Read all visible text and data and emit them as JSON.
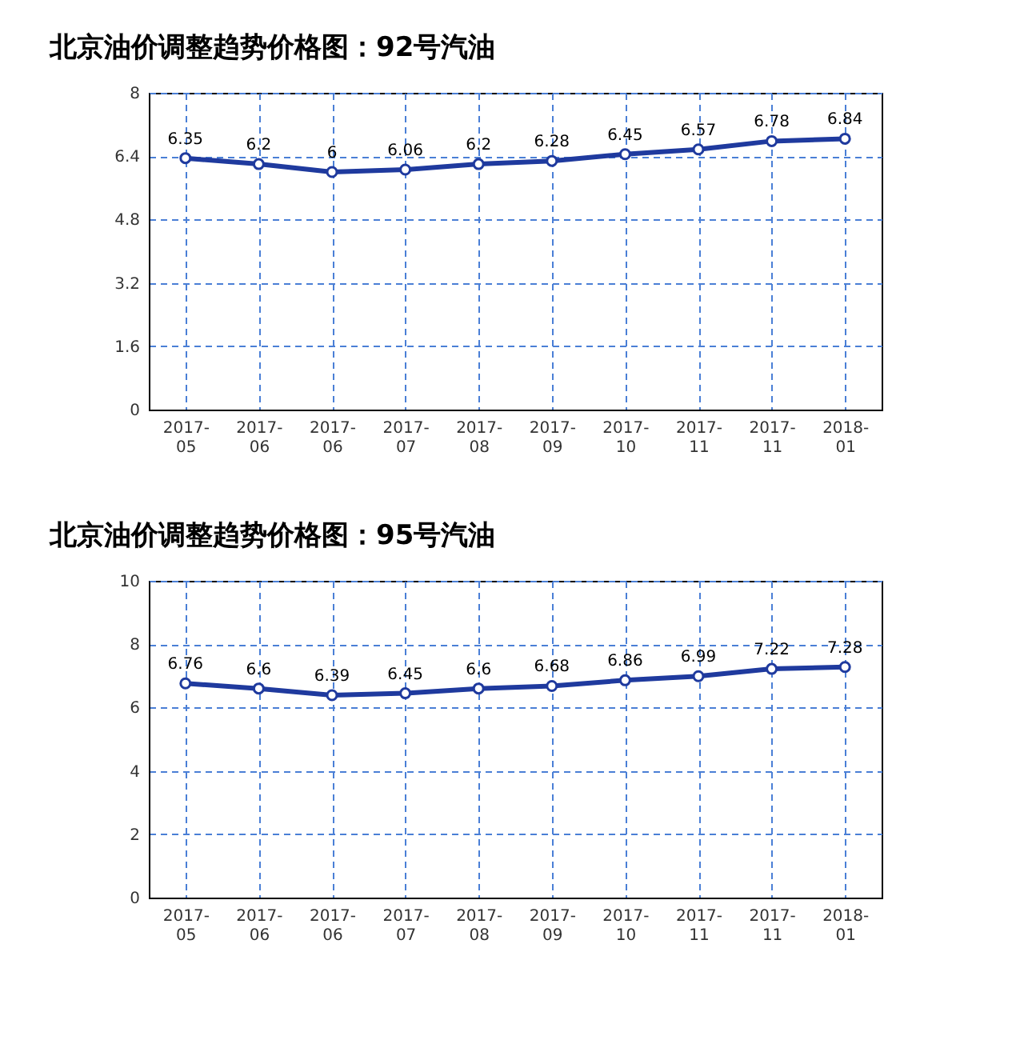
{
  "chart_data": [
    {
      "type": "line",
      "title": "北京油价调整趋势价格图：92号汽油",
      "categories": [
        "2017-05",
        "2017-06",
        "2017-06",
        "2017-07",
        "2017-08",
        "2017-09",
        "2017-10",
        "2017-11",
        "2017-11",
        "2018-01"
      ],
      "series": [
        {
          "color": "#1f3a9e",
          "values": [
            6.35,
            6.2,
            6,
            6.06,
            6.2,
            6.28,
            6.45,
            6.57,
            6.78,
            6.84
          ]
        }
      ],
      "ylim": [
        0,
        8
      ],
      "yticks": [
        0,
        1.6,
        3.2,
        4.8,
        6.4,
        8
      ],
      "grid": true,
      "marker": "circle",
      "data_labels": true
    },
    {
      "type": "line",
      "title": "北京油价调整趋势价格图：95号汽油",
      "categories": [
        "2017-05",
        "2017-06",
        "2017-06",
        "2017-07",
        "2017-08",
        "2017-09",
        "2017-10",
        "2017-11",
        "2017-11",
        "2018-01"
      ],
      "series": [
        {
          "color": "#1f3a9e",
          "values": [
            6.76,
            6.6,
            6.39,
            6.45,
            6.6,
            6.68,
            6.86,
            6.99,
            7.22,
            7.28
          ]
        }
      ],
      "ylim": [
        0,
        10
      ],
      "yticks": [
        0,
        2,
        4,
        6,
        8,
        10
      ],
      "grid": true,
      "marker": "circle",
      "data_labels": true
    }
  ]
}
